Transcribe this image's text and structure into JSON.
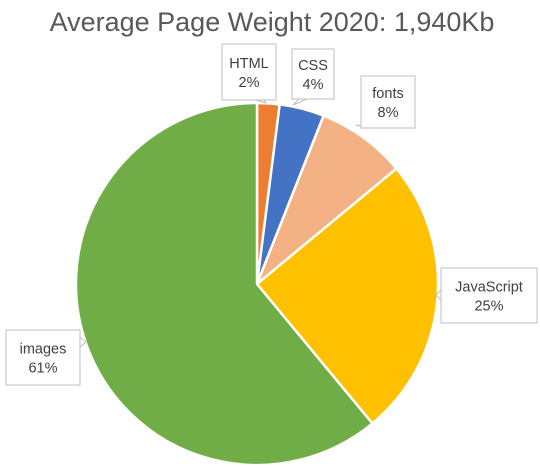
{
  "chart_data": {
    "type": "pie",
    "title": "Average Page Weight 2020: 1,940Kb",
    "legend": "none",
    "start_angle_deg": 0,
    "direction": "clockwise",
    "slices": [
      {
        "name": "HTML",
        "label": "2%",
        "value": 2,
        "color": "#ED7D31"
      },
      {
        "name": "CSS",
        "label": "4%",
        "value": 4,
        "color": "#4472C4"
      },
      {
        "name": "fonts",
        "label": "8%",
        "value": 8,
        "color": "#F4B183"
      },
      {
        "name": "JavaScript",
        "label": "25%",
        "value": 25,
        "color": "#FFC000"
      },
      {
        "name": "images",
        "label": "61%",
        "value": 61,
        "color": "#70AD47"
      }
    ]
  }
}
